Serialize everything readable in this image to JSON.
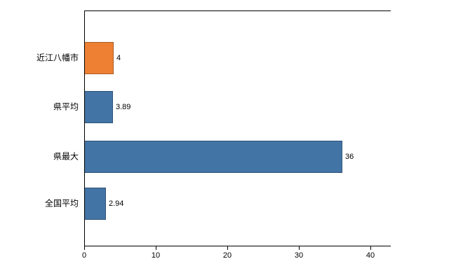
{
  "chart_data": {
    "type": "bar",
    "orientation": "horizontal",
    "title": "",
    "xlabel": "",
    "ylabel": "",
    "categories": [
      "近江八幡市",
      "県平均",
      "県最大",
      "全国平均"
    ],
    "values": [
      4,
      3.89,
      36,
      2.94
    ],
    "value_labels": [
      "4",
      "3.89",
      "36",
      "2.94"
    ],
    "bar_colors": [
      "#ED8032",
      "#4374A6",
      "#4374A6",
      "#4374A6"
    ],
    "x_ticks": [
      0,
      10,
      20,
      30,
      40
    ],
    "x_tick_labels": [
      "0",
      "10",
      "20",
      "30",
      "40"
    ],
    "xlim": [
      0,
      42.8
    ],
    "grid": false,
    "legend": "none"
  },
  "colors": {
    "background": "#ffffff",
    "axis": "#000000",
    "text": "#000000",
    "highlight_bar": "#ED8032",
    "default_bar": "#4374A6"
  }
}
